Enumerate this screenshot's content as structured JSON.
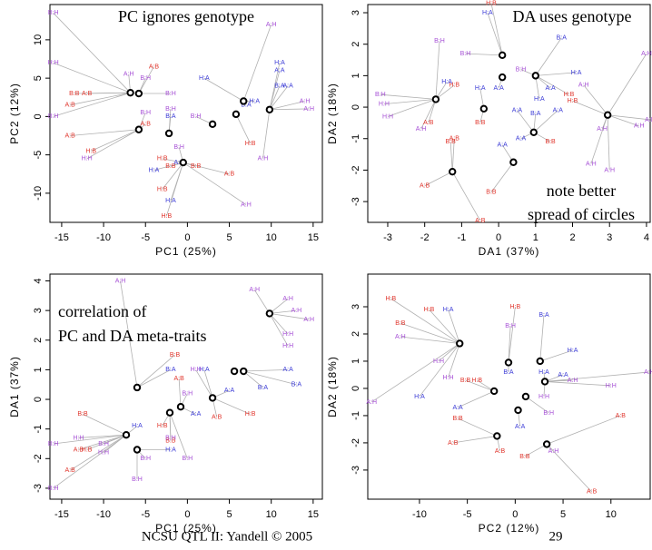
{
  "chart_data": [
    {
      "type": "scatter",
      "title": "PC ignores genotype",
      "x_label": "PC1 (25%)",
      "y_label": "PC2 (12%)",
      "xlim": [
        -16.4,
        16.1
      ],
      "ylim": [
        -13.8,
        14.6
      ],
      "xticks": [
        -15,
        -10,
        -5,
        0,
        5,
        10,
        15
      ],
      "yticks": [
        -10,
        -5,
        0,
        5,
        10
      ],
      "series": [
        {
          "color": "#e0342b",
          "labels": [
            "A:B",
            "B:B",
            "A:B",
            "A:B",
            "A:B",
            "A:B",
            "H:B",
            "H:B",
            "H:B",
            "H:B",
            "B:B",
            "B:B",
            "H:B",
            "A:B"
          ],
          "x": [
            -14,
            -13.5,
            -12,
            -14,
            -4,
            -5,
            -11.5,
            -3,
            -3,
            -2.5,
            -2,
            1,
            7.5,
            5
          ],
          "y": [
            -2.5,
            3,
            3,
            1.5,
            6.5,
            -1,
            -4.5,
            -5.5,
            -9.5,
            -13,
            -6.5,
            -6.5,
            -3.5,
            -7.5
          ]
        },
        {
          "color": "#3a3ad6",
          "labels": [
            "H:A",
            "B:A",
            "H:A",
            "A:A",
            "B:A",
            "H:A",
            "A:A",
            "B:A",
            "H:A",
            "H:A",
            "A:A"
          ],
          "x": [
            2,
            -2,
            8,
            11,
            11,
            11,
            12,
            7,
            -2,
            -4,
            -1
          ],
          "y": [
            5,
            0,
            2,
            6,
            4,
            7,
            4,
            1.5,
            -11,
            -7,
            -6
          ]
        },
        {
          "color": "#a64fd6",
          "labels": [
            "B:H",
            "H:H",
            "B:H",
            "A:H",
            "B:H",
            "B:H",
            "B:H",
            "B:H",
            "A:H",
            "A:H",
            "A:H",
            "A:H",
            "A:H",
            "H:H",
            "B:H",
            "B:H"
          ],
          "x": [
            -16,
            -16,
            -16,
            -7,
            -5,
            -2,
            -5,
            -2,
            10,
            14,
            14.5,
            9,
            7,
            -12,
            1,
            -1
          ],
          "y": [
            13.5,
            7,
            0,
            5.5,
            5,
            3,
            0.5,
            1,
            12,
            2,
            1,
            -5.5,
            -11.5,
            -5.5,
            0,
            -4
          ]
        }
      ],
      "centroids": {
        "x": [
          -6.8,
          -5.8,
          -5.8,
          -2.2,
          -0.5,
          3,
          5.8,
          6.7,
          9.8
        ],
        "y": [
          3.1,
          3,
          -1.7,
          -2.2,
          -6,
          -1,
          0.3,
          2,
          0.9
        ]
      }
    },
    {
      "type": "scatter",
      "title": "DA uses genotype",
      "annotations": [
        "note better",
        "spread of circles"
      ],
      "x_label": "DA1 (37%)",
      "y_label": "DA2 (18%)",
      "xlim": [
        -3.54,
        4.1
      ],
      "ylim": [
        -3.66,
        3.26
      ],
      "xticks": [
        -3,
        -2,
        -1,
        0,
        1,
        2,
        3,
        4
      ],
      "yticks": [
        -3,
        -2,
        -1,
        0,
        1,
        2,
        3
      ],
      "series": [
        {
          "color": "#e0342b",
          "labels": [
            "H:B",
            "H:B",
            "B:B",
            "A:B",
            "B:B",
            "B:B",
            "A:B",
            "B:B",
            "A:B",
            "H:B",
            "H:B",
            "A:B"
          ],
          "x": [
            -0.2,
            -1.2,
            -0.5,
            -1.2,
            -1.3,
            1.4,
            -2.0,
            -0.2,
            -0.5,
            1.9,
            2.0,
            -1.9
          ],
          "y": [
            3.3,
            0.7,
            -0.5,
            -1.0,
            -1.1,
            -1.1,
            -2.5,
            -2.7,
            -3.6,
            0.4,
            0.2,
            -0.5
          ]
        },
        {
          "color": "#3a3ad6",
          "labels": [
            "H:A",
            "B:A",
            "H:A",
            "A:A",
            "A:A",
            "H:A",
            "H:A",
            "B:A",
            "A:A",
            "A:A",
            "A:A",
            "A:A",
            "H:A"
          ],
          "x": [
            -0.3,
            1.7,
            -1.4,
            0.0,
            1.4,
            -0.5,
            1.1,
            1.0,
            1.6,
            0.5,
            0.1,
            0.6,
            2.1
          ],
          "y": [
            3,
            2.2,
            0.8,
            0.6,
            0.6,
            0.6,
            0.25,
            -0.2,
            -0.1,
            -0.1,
            -1.2,
            -1.0,
            1.1
          ]
        },
        {
          "color": "#a64fd6",
          "labels": [
            "B:H",
            "B:H",
            "B:H",
            "H:H",
            "H:H",
            "A:H",
            "A:H",
            "A:H",
            "A:H",
            "A:H",
            "A:H",
            "A:H",
            "B:H",
            "A:H"
          ],
          "x": [
            -1.6,
            -0.9,
            -3.2,
            -3.1,
            -3.0,
            -2.1,
            4.0,
            4.1,
            3.8,
            2.8,
            2.5,
            3,
            0.6,
            2.3
          ],
          "y": [
            2.1,
            1.7,
            0.4,
            0.1,
            -0.3,
            -0.7,
            1.7,
            -0.4,
            -0.6,
            -0.7,
            -1.8,
            -2,
            1.2,
            0.7
          ]
        }
      ],
      "centroids": {
        "x": [
          0.1,
          0.1,
          1.0,
          -1.7,
          -0.4,
          2.95,
          0.95,
          -1.25,
          0.4
        ],
        "y": [
          1.65,
          0.95,
          1.0,
          0.25,
          -0.05,
          -0.25,
          -0.8,
          -2.05,
          -1.75
        ]
      }
    },
    {
      "type": "scatter",
      "annotations": [
        "correlation of",
        "PC and DA meta-traits"
      ],
      "x_label": "PC1 (25%)",
      "y_label": "DA1 (37%)",
      "xlim": [
        -16.4,
        16.1
      ],
      "ylim": [
        -3.37,
        4.23
      ],
      "xticks": [
        -15,
        -10,
        -5,
        0,
        5,
        10,
        15
      ],
      "yticks": [
        -3,
        -2,
        -1,
        0,
        1,
        2,
        3,
        4
      ],
      "series": [
        {
          "color": "#e0342b",
          "labels": [
            "B:B",
            "A:B",
            "B:B",
            "H:B",
            "A:B",
            "A:B",
            "H:B",
            "A:B",
            "H:B",
            "B:B"
          ],
          "x": [
            -1.5,
            -1,
            -12.5,
            -12,
            -14,
            -13,
            7.5,
            3.5,
            -3,
            -2
          ],
          "y": [
            1.5,
            0.7,
            -0.5,
            -1.7,
            -2.4,
            -1.7,
            -0.5,
            -0.6,
            -0.9,
            -1.4
          ]
        },
        {
          "color": "#3a3ad6",
          "labels": [
            "B:A",
            "H:A",
            "A:A",
            "B:A",
            "A:A",
            "B:A",
            "H:A",
            "A:A",
            "H:A"
          ],
          "x": [
            -2,
            2,
            5,
            9,
            12,
            13,
            -2,
            1,
            -6
          ],
          "y": [
            1,
            1,
            0.3,
            0.4,
            1,
            0.5,
            -1.7,
            -0.5,
            -0.9
          ]
        },
        {
          "color": "#a64fd6",
          "labels": [
            "A:H",
            "A:H",
            "A:H",
            "A:H",
            "A:H",
            "H:H",
            "H:H",
            "B:H",
            "B:H",
            "H:H",
            "B:H",
            "B:H",
            "B:H",
            "B:H",
            "B:H",
            "H:H",
            "B:H",
            "H:H"
          ],
          "x": [
            -8,
            8,
            12,
            13,
            14.5,
            12,
            12,
            -16,
            -16,
            -13,
            -10,
            -5,
            -2,
            0,
            -6,
            -10,
            0,
            1
          ],
          "y": [
            4,
            3.7,
            3.4,
            3,
            2.7,
            2.2,
            1.8,
            -1.5,
            -3,
            -1.3,
            -1.5,
            -2,
            -1.3,
            -2,
            -2.7,
            -1.8,
            0.2,
            1
          ]
        }
      ],
      "centroids": {
        "x": [
          9.8,
          -6,
          5.6,
          6.7,
          3,
          -0.8,
          -2.1,
          -7.3,
          -6
        ],
        "y": [
          2.9,
          0.4,
          0.95,
          0.95,
          0.05,
          -0.25,
          -0.45,
          -1.2,
          -1.7
        ]
      }
    },
    {
      "type": "scatter",
      "x_label": "PC2 (12%)",
      "y_label": "DA2 (18%)",
      "xlim": [
        -15.4,
        14.1
      ],
      "ylim": [
        -4.07,
        4.2
      ],
      "xticks": [
        -10,
        -5,
        0,
        5,
        10
      ],
      "yticks": [
        -3,
        -2,
        -1,
        0,
        1,
        2,
        3
      ],
      "series": [
        {
          "color": "#e0342b",
          "labels": [
            "H:B",
            "H:B",
            "H:B",
            "B:B",
            "B:B",
            "H:B",
            "B:B",
            "A:B",
            "A:B",
            "B:B",
            "A:B",
            "A:B"
          ],
          "x": [
            -13,
            -9,
            0,
            -12,
            -5.2,
            -4,
            -6,
            -6.5,
            -1.6,
            1,
            11,
            8
          ],
          "y": [
            3.3,
            2.9,
            3,
            2.4,
            0.3,
            0.3,
            -1.1,
            -2,
            -2.3,
            -2.5,
            -1,
            -3.8
          ]
        },
        {
          "color": "#3a3ad6",
          "labels": [
            "H:A",
            "B:A",
            "H:A",
            "H:A",
            "A:A",
            "A:A",
            "H:A",
            "B:A",
            "A:A"
          ],
          "x": [
            -7,
            3,
            6,
            3,
            5,
            -6,
            -10,
            -0.7,
            0.5
          ],
          "y": [
            2.9,
            2.7,
            1.4,
            0.6,
            0.5,
            -0.7,
            -0.3,
            0.6,
            -1.4
          ]
        },
        {
          "color": "#a64fd6",
          "labels": [
            "A:H",
            "A:H",
            "H:H",
            "H:H",
            "B:H",
            "B:H",
            "A:H",
            "H:H",
            "A:H",
            "H:H",
            "A:H"
          ],
          "x": [
            -12,
            -15,
            -8,
            -7,
            -0.5,
            3.5,
            14,
            10,
            4,
            3,
            6
          ],
          "y": [
            1.9,
            -0.5,
            1,
            0.4,
            2.3,
            -0.9,
            0.6,
            0.1,
            -2.3,
            -0.3,
            0.3
          ]
        }
      ],
      "centroids": {
        "x": [
          -5.8,
          -0.7,
          2.6,
          3.1,
          -2.2,
          1.1,
          0.3,
          -1.9,
          3.3
        ],
        "y": [
          1.65,
          0.95,
          1.0,
          0.25,
          -0.1,
          -0.3,
          -0.8,
          -1.75,
          -2.05
        ]
      }
    }
  ],
  "footer": "NCSU QTL II: Yandell © 2005",
  "page_number": "29"
}
